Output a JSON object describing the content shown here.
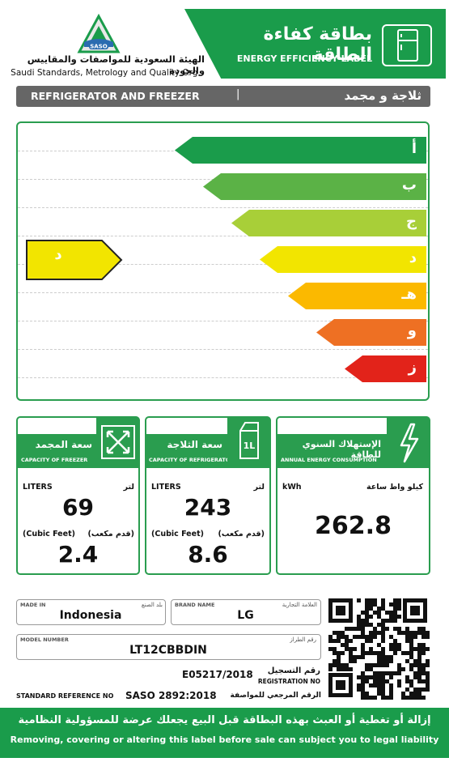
{
  "header": {
    "org_ar": "الهيئة السعودية للمواصفات والمقاييس والجودة",
    "org_en": "Saudi Standards, Metrology and Quality Org.",
    "logo_text": "SASO",
    "title_ar": "بطاقة كفاءة الطاقة",
    "title_en": "ENERGY EFFICIENCY LABEL",
    "green": "#1a9c4b"
  },
  "product": {
    "type_en": "REFRIGERATOR AND FREEZER",
    "divider": "|",
    "type_ar": "ثلاجة و مجمد"
  },
  "rating": {
    "classes": [
      {
        "label": "أ",
        "color": "#1a9c4b"
      },
      {
        "label": "ب",
        "color": "#5bb246"
      },
      {
        "label": "ج",
        "color": "#a8cf38"
      },
      {
        "label": "د",
        "color": "#f2e500"
      },
      {
        "label": "هـ",
        "color": "#fbb900"
      },
      {
        "label": "و",
        "color": "#ee7023"
      },
      {
        "label": "ز",
        "color": "#e2231a"
      }
    ],
    "selected_label": "د",
    "selected_color": "#f2e500"
  },
  "freezer": {
    "title_ar": "سعة المجمد",
    "title_en": "CAPACITY OF FREEZER",
    "unit1_en": "LITERS",
    "unit1_ar": "لتر",
    "value_liters": "69",
    "unit2_en": "(Cubic Feet)",
    "unit2_ar": "(قدم مكعب)",
    "value_cuft": "2.4"
  },
  "refrigerator": {
    "title_ar": "سعة الثلاجة",
    "title_en": "CAPACITY OF REFRIGERATOR",
    "unit1_en": "LITERS",
    "unit1_ar": "لتر",
    "value_liters": "243",
    "unit2_en": "(Cubic Feet)",
    "unit2_ar": "(قدم مكعب)",
    "value_cuft": "8.6",
    "icon_text": "1L"
  },
  "energy": {
    "title_ar": "الإستهلاك السنوي للطاقة",
    "title_en": "ANNUAL ENERGY CONSUMPTION",
    "unit_en": "kWh",
    "unit_ar": "كيلو واط ساعة",
    "value": "262.8"
  },
  "info": {
    "made_in_label_en": "MADE IN",
    "made_in_label_ar": "بلد الصنع",
    "made_in": "Indonesia",
    "brand_label_en": "BRAND NAME",
    "brand_label_ar": "العلامة التجارية",
    "brand": "LG",
    "model_label_en": "MODEL NUMBER",
    "model_label_ar": "رقم الطراز",
    "model": "LT12CBBDIN",
    "registration": "E05217/2018",
    "registration_label_ar": "رقم التسجيل",
    "registration_label_en": "REGISTRATION NO",
    "standard_label_en": "STANDARD REFERENCE NO",
    "standard": "SASO 2892:2018",
    "standard_label_ar": "الرقم المرجعي للمواصفة"
  },
  "footer": {
    "warning_ar": "إزالة أو تغطية أو العبث بهذه البطاقة قبل البيع يجعلك عرضة للمسؤولية النظامية",
    "warning_en": "Removing, covering or altering this label before sale can subject you to legal liability"
  }
}
